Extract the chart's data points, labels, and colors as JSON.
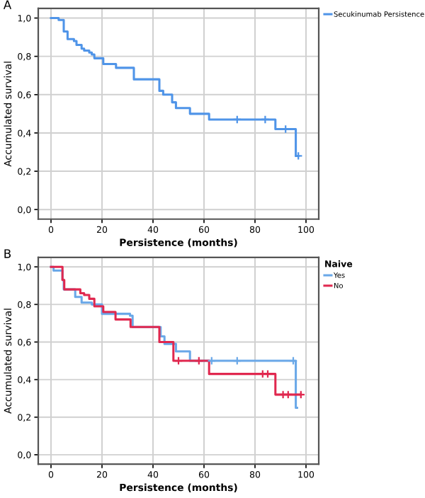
{
  "chart_data": [
    {
      "type": "step",
      "annotations": [
        "A"
      ],
      "xlabel": "Persistence (months)",
      "ylabel": "Accumulated survival",
      "series": [
        {
          "name": "Secukinumab Persistence",
          "color": "#4f94e8",
          "x": [
            0,
            3,
            5,
            6.5,
            9,
            10,
            12,
            13,
            15,
            16,
            17,
            20.5,
            25.5,
            32.5,
            42.5,
            44,
            47.5,
            49,
            54.5,
            62,
            88,
            96,
            97
          ],
          "values": [
            1.0,
            0.99,
            0.93,
            0.89,
            0.88,
            0.86,
            0.84,
            0.83,
            0.82,
            0.81,
            0.79,
            0.76,
            0.74,
            0.68,
            0.62,
            0.6,
            0.56,
            0.53,
            0.5,
            0.47,
            0.42,
            0.28,
            0.28
          ]
        },
        {
          "type": "scatter",
          "marker": "cross",
          "color": "#4f94e8",
          "x": [
            73,
            84,
            92,
            97
          ],
          "values": [
            0.47,
            0.47,
            0.42,
            0.28
          ]
        }
      ],
      "xlim": [
        -5,
        105
      ],
      "ylim": [
        -0.05,
        1.05
      ],
      "xticks": [
        0,
        20,
        40,
        60,
        80,
        100
      ],
      "yticks": [
        {
          "value": 0,
          "label": "0,0"
        },
        {
          "value": 0.2,
          "label": "0,2"
        },
        {
          "value": 0.4,
          "label": "0,4"
        },
        {
          "value": 0.6,
          "label": "0,6"
        },
        {
          "value": 0.8,
          "label": "0,8"
        },
        {
          "value": 1,
          "label": "1,0"
        }
      ],
      "grid": true,
      "legend": "right"
    },
    {
      "type": "step",
      "annotations": [
        "B"
      ],
      "xlabel": "Persistence (months)",
      "ylabel": "Accumulated survival",
      "legend_title": "Naive",
      "series": [
        {
          "name": "Yes",
          "color": "#6aa8e8",
          "x": [
            0,
            1,
            4.5,
            5,
            9.5,
            12,
            16,
            20,
            31,
            32,
            43,
            44.5,
            49,
            54.5,
            96,
            96.5
          ],
          "values": [
            1.0,
            0.98,
            0.93,
            0.88,
            0.84,
            0.81,
            0.8,
            0.75,
            0.74,
            0.68,
            0.63,
            0.59,
            0.55,
            0.5,
            0.25,
            0.25
          ]
        },
        {
          "name": "No",
          "color": "#e0284f",
          "x": [
            0,
            4.5,
            5.2,
            11.5,
            13,
            15,
            17,
            20.5,
            25.3,
            31.2,
            42.5,
            48,
            62,
            88,
            98
          ],
          "values": [
            1.0,
            0.93,
            0.88,
            0.86,
            0.85,
            0.83,
            0.79,
            0.76,
            0.72,
            0.68,
            0.6,
            0.5,
            0.43,
            0.32,
            0.32
          ]
        },
        {
          "type": "scatter",
          "marker": "cross",
          "color": "#6aa8e8",
          "x": [
            63,
            73,
            95
          ],
          "values": [
            0.5,
            0.5,
            0.5
          ]
        },
        {
          "type": "scatter",
          "marker": "cross",
          "color": "#e0284f",
          "x": [
            50,
            58,
            83,
            85,
            91,
            93,
            98
          ],
          "values": [
            0.5,
            0.5,
            0.43,
            0.43,
            0.32,
            0.32,
            0.32
          ]
        }
      ],
      "xlim": [
        -5,
        105
      ],
      "ylim": [
        -0.05,
        1.05
      ],
      "xticks": [
        0,
        20,
        40,
        60,
        80,
        100
      ],
      "yticks": [
        {
          "value": 0,
          "label": "0,0"
        },
        {
          "value": 0.2,
          "label": "0,2"
        },
        {
          "value": 0.4,
          "label": "0,4"
        },
        {
          "value": 0.6,
          "label": "0,6"
        },
        {
          "value": 0.8,
          "label": "0,8"
        },
        {
          "value": 1,
          "label": "1,0"
        }
      ],
      "grid": true,
      "legend": "right"
    }
  ]
}
